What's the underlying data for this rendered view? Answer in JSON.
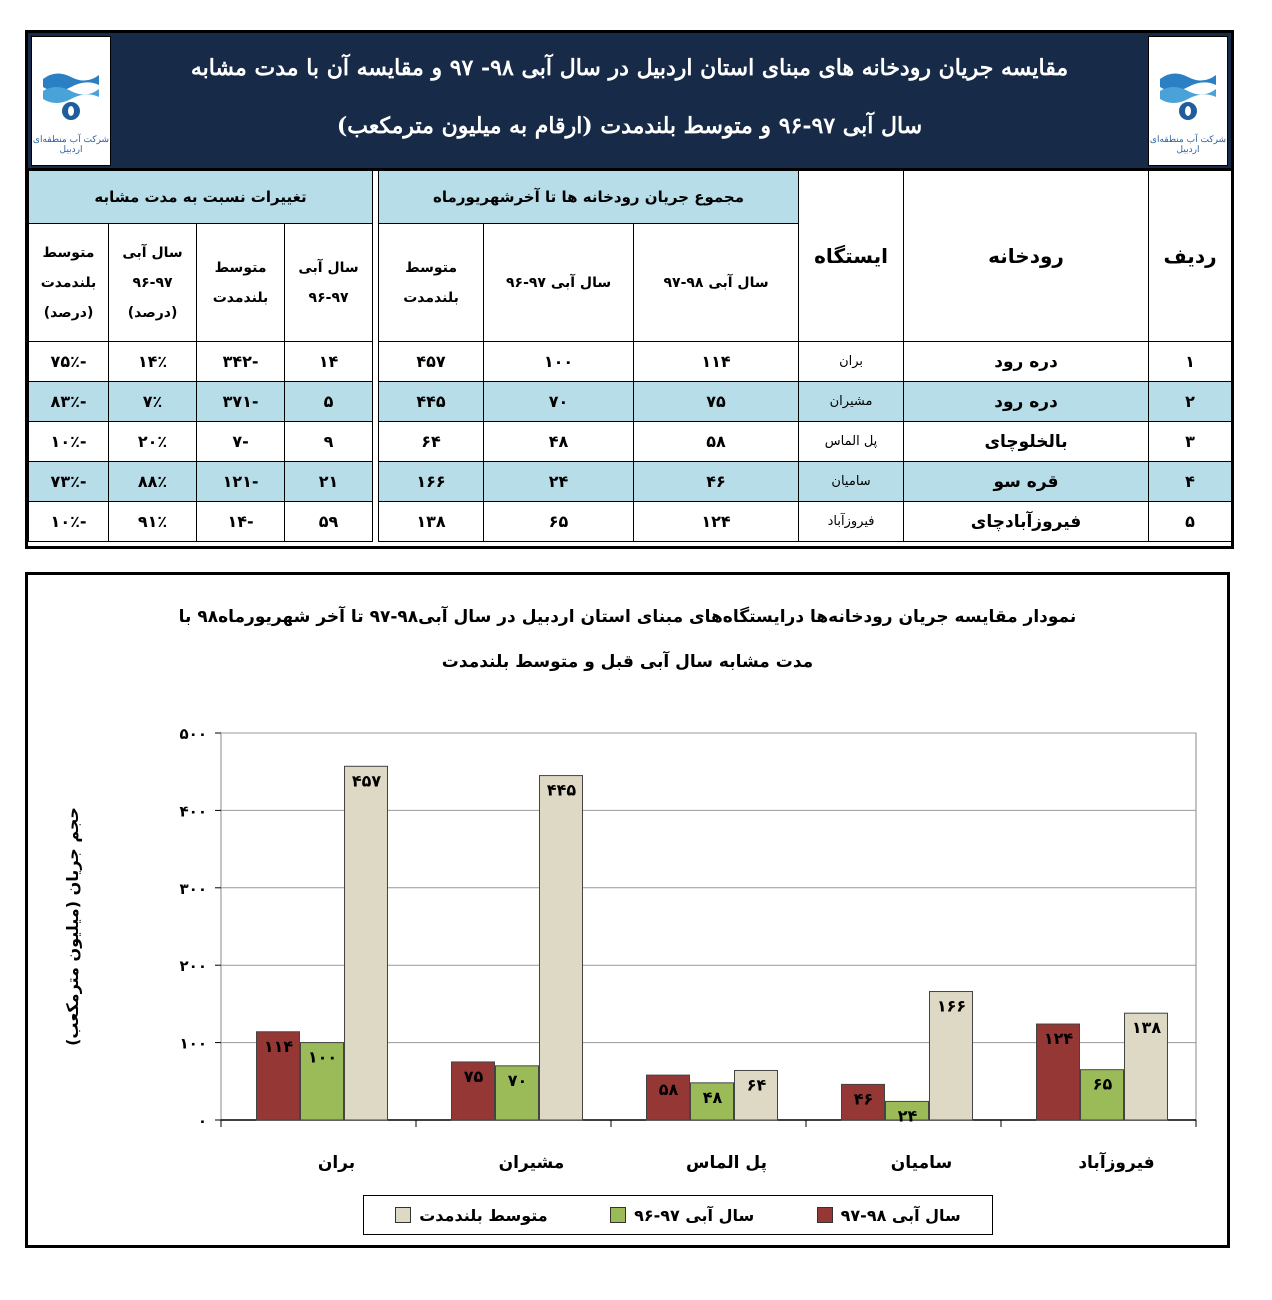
{
  "header": {
    "title_line1": "مقایسه جریان رودخانه های مبنای استان اردبیل در سال آبی ۹۸- ۹۷  و مقایسه آن با مدت مشابه",
    "title_line2": "سال آبی ۹۷-۹۶ و متوسط بلندمدت (ارقام به میلیون مترمکعب)",
    "logo_text": "شرکت آب منطقه‌ای اردبیل"
  },
  "table": {
    "headers": {
      "row_no": "ردیف",
      "river": "رودخانه",
      "station": "ایستگاه",
      "group_total": "مجموع جریان رودخانه ها تا آخرشهریورماه",
      "group_change": "تغییرات نسبت به مدت مشابه",
      "total_9798": "سال آبی ۹۸-۹۷",
      "total_9697": "سال آبی ۹۷-۹۶",
      "total_longterm": "متوسط بلندمدت",
      "change_9697": "سال آبی ۹۷-۹۶",
      "change_longterm": "متوسط بلندمدت",
      "pct_9697": "سال آبی ۹۷-۹۶ (درصد)",
      "pct_longterm": "متوسط بلندمدت (درصد)"
    },
    "rows": [
      {
        "no": "۱",
        "river": "دره رود",
        "station": "بران",
        "v9798": "۱۱۴",
        "v9697": "۱۰۰",
        "vlong": "۴۵۷",
        "d9697": "۱۴",
        "dlong": "-۳۴۲",
        "p9697": "۱۴٪",
        "plong": "-۷۵٪"
      },
      {
        "no": "۲",
        "river": "دره رود",
        "station": "مشیران",
        "v9798": "۷۵",
        "v9697": "۷۰",
        "vlong": "۴۴۵",
        "d9697": "۵",
        "dlong": "-۳۷۱",
        "p9697": "۷٪",
        "plong": "-۸۳٪"
      },
      {
        "no": "۳",
        "river": "بالخلوچای",
        "station": "پل الماس",
        "v9798": "۵۸",
        "v9697": "۴۸",
        "vlong": "۶۴",
        "d9697": "۹",
        "dlong": "-۷",
        "p9697": "۲۰٪",
        "plong": "-۱۰٪"
      },
      {
        "no": "۴",
        "river": "قره سو",
        "station": "سامیان",
        "v9798": "۴۶",
        "v9697": "۲۴",
        "vlong": "۱۶۶",
        "d9697": "۲۱",
        "dlong": "-۱۲۱",
        "p9697": "۸۸٪",
        "plong": "-۷۳٪"
      },
      {
        "no": "۵",
        "river": "فیروزآبادچای",
        "station": "فیروزآباد",
        "v9798": "۱۲۴",
        "v9697": "۶۵",
        "vlong": "۱۳۸",
        "d9697": "۵۹",
        "dlong": "-۱۴",
        "p9697": "۹۱٪",
        "plong": "-۱۰٪"
      }
    ]
  },
  "chart_data": {
    "type": "bar",
    "title": "نمودار مقایسه جریان رودخانه‌ها درایستگاه‌های مبنای استان اردبیل در سال آبی۹۸-۹۷ تا آخر شهریورماه۹۸ با",
    "subtitle": "مدت مشابه سال آبی قبل و متوسط بلندمدت",
    "ylabel": "حجم جریان (میلیون مترمکعب)",
    "xlabel": "",
    "categories": [
      "بران",
      "مشیران",
      "پل الماس",
      "سامیان",
      "فیروزآباد"
    ],
    "series": [
      {
        "name": "سال آبی ۹۸-۹۷",
        "values": [
          114,
          75,
          58,
          46,
          124
        ],
        "labels": [
          "۱۱۴",
          "۷۵",
          "۵۸",
          "۴۶",
          "۱۲۴"
        ],
        "color": "#953735"
      },
      {
        "name": "سال آبی ۹۷-۹۶",
        "values": [
          100,
          70,
          48,
          24,
          65
        ],
        "labels": [
          "۱۰۰",
          "۷۰",
          "۴۸",
          "۲۴",
          "۶۵"
        ],
        "color": "#9bbb59"
      },
      {
        "name": "متوسط بلندمدت",
        "values": [
          457,
          445,
          64,
          166,
          138
        ],
        "labels": [
          "۴۵۷",
          "۴۴۵",
          "۶۴",
          "۱۶۶",
          "۱۳۸"
        ],
        "color": "#ddd9c4"
      }
    ],
    "ylim": [
      0,
      500
    ],
    "yticks": [
      0,
      100,
      200,
      300,
      400,
      500
    ],
    "ytick_labels": [
      "۰",
      "۱۰۰",
      "۲۰۰",
      "۳۰۰",
      "۴۰۰",
      "۵۰۰"
    ],
    "grid": true,
    "legend_position": "bottom"
  }
}
